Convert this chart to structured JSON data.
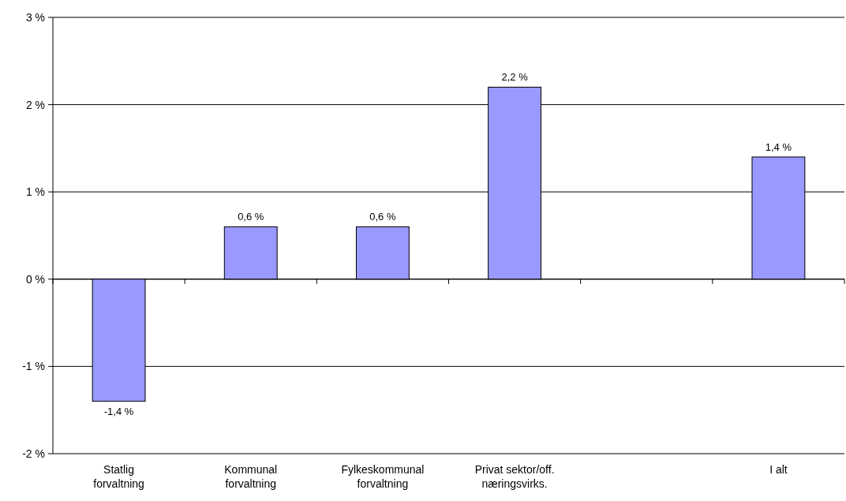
{
  "chart_data": {
    "type": "bar",
    "categories": [
      "Statlig forvaltning",
      "Kommunal forvaltning",
      "Fylkeskommunal forvaltning",
      "Privat sektor/off. næringsvirks.",
      null,
      "I alt"
    ],
    "values": [
      -1.4,
      0.6,
      0.6,
      2.2,
      null,
      1.4
    ],
    "value_labels": [
      "-1,4 %",
      "0,6 %",
      "0,6 %",
      "2,2 %",
      null,
      "1,4 %"
    ],
    "color": "#9999ff",
    "ylim": [
      -2,
      3
    ],
    "yticks": [
      {
        "value": -2,
        "label": "-2 %"
      },
      {
        "value": -1,
        "label": "-1 %"
      },
      {
        "value": 0,
        "label": "0 %"
      },
      {
        "value": 1,
        "label": "1 %"
      },
      {
        "value": 2,
        "label": "2 %"
      },
      {
        "value": 3,
        "label": "3 %"
      }
    ],
    "grid": "y"
  }
}
